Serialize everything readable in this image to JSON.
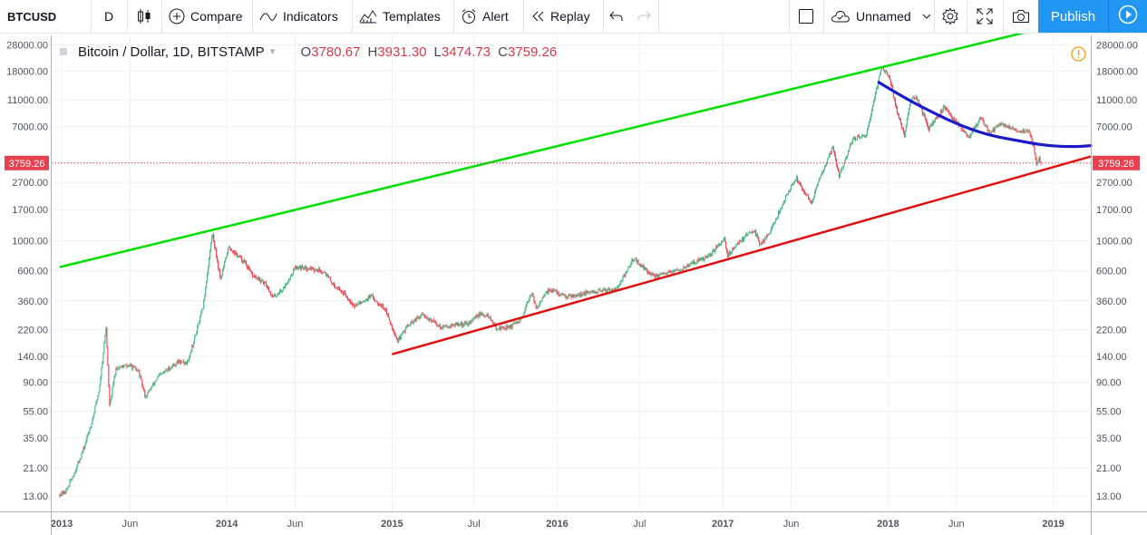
{
  "toolbar": {
    "symbol": "BTCUSD",
    "interval": "D",
    "compare": "Compare",
    "indicators": "Indicators",
    "templates": "Templates",
    "alert": "Alert",
    "replay": "Replay",
    "layout_name": "Unnamed",
    "publish": "Publish"
  },
  "legend": {
    "title": "Bitcoin / Dollar, 1D, BITSTAMP",
    "o_key": "O",
    "open": "3780.67",
    "h_key": "H",
    "high": "3931.30",
    "l_key": "L",
    "low": "3474.73",
    "c_key": "C",
    "close": "3759.26"
  },
  "colors": {
    "up_candle": "#53b987",
    "down_candle": "#eb4d5c",
    "upper_trendline": "#00e000",
    "lower_trendline": "#e01010",
    "curve": "#1a1ac8",
    "price_label": "#e8404f",
    "accent": "#2196f3",
    "warning": "#f39c12"
  },
  "chart_data": {
    "type": "candlestick",
    "title": "Bitcoin / Dollar, 1D, BITSTAMP",
    "y_scale": "log",
    "grid": true,
    "x_range": [
      "2012-12-10",
      "2019-03-25"
    ],
    "y_range": [
      10,
      33000
    ],
    "y_tick_labels": [
      "28000.00",
      "18000.00",
      "11000.00",
      "7000.00",
      "2700.00",
      "1700.00",
      "1000.00",
      "600.00",
      "360.00",
      "220.00",
      "140.00",
      "90.00",
      "55.00",
      "35.00",
      "21.00",
      "13.00"
    ],
    "x_tick_labels": [
      {
        "date": "2013-01-01",
        "label": "2013"
      },
      {
        "date": "2013-06-01",
        "label": "Jun"
      },
      {
        "date": "2014-01-01",
        "label": "2014"
      },
      {
        "date": "2014-06-01",
        "label": "Jun"
      },
      {
        "date": "2015-01-01",
        "label": "2015"
      },
      {
        "date": "2015-07-01",
        "label": "Jul"
      },
      {
        "date": "2016-01-01",
        "label": "2016"
      },
      {
        "date": "2016-07-01",
        "label": "Jul"
      },
      {
        "date": "2017-01-01",
        "label": "2017"
      },
      {
        "date": "2017-06-01",
        "label": "Jun"
      },
      {
        "date": "2018-01-01",
        "label": "2018"
      },
      {
        "date": "2018-06-01",
        "label": "Jun"
      },
      {
        "date": "2019-01-01",
        "label": "2019"
      }
    ],
    "last_price": {
      "value": 3759.26,
      "label": "3759.26"
    },
    "price_path": [
      [
        "2012-12-28",
        13.4
      ],
      [
        "2013-01-10",
        14
      ],
      [
        "2013-01-31",
        20
      ],
      [
        "2013-02-20",
        30
      ],
      [
        "2013-03-10",
        48
      ],
      [
        "2013-03-25",
        80
      ],
      [
        "2013-04-09",
        230
      ],
      [
        "2013-04-17",
        60
      ],
      [
        "2013-05-01",
        115
      ],
      [
        "2013-06-01",
        120
      ],
      [
        "2013-06-20",
        108
      ],
      [
        "2013-07-05",
        70
      ],
      [
        "2013-08-01",
        98
      ],
      [
        "2013-09-15",
        128
      ],
      [
        "2013-10-05",
        125
      ],
      [
        "2013-10-20",
        180
      ],
      [
        "2013-11-10",
        330
      ],
      [
        "2013-11-30",
        1150
      ],
      [
        "2013-12-18",
        520
      ],
      [
        "2014-01-05",
        900
      ],
      [
        "2014-02-10",
        690
      ],
      [
        "2014-02-25",
        560
      ],
      [
        "2014-03-30",
        470
      ],
      [
        "2014-04-12",
        380
      ],
      [
        "2014-05-05",
        440
      ],
      [
        "2014-06-02",
        640
      ],
      [
        "2014-07-01",
        630
      ],
      [
        "2014-08-05",
        590
      ],
      [
        "2014-08-20",
        490
      ],
      [
        "2014-09-20",
        400
      ],
      [
        "2014-10-10",
        330
      ],
      [
        "2014-11-15",
        390
      ],
      [
        "2014-12-15",
        320
      ],
      [
        "2015-01-14",
        180
      ],
      [
        "2015-02-01",
        230
      ],
      [
        "2015-03-10",
        285
      ],
      [
        "2015-04-20",
        230
      ],
      [
        "2015-05-20",
        240
      ],
      [
        "2015-06-20",
        245
      ],
      [
        "2015-07-10",
        285
      ],
      [
        "2015-08-01",
        280
      ],
      [
        "2015-08-20",
        225
      ],
      [
        "2015-09-20",
        232
      ],
      [
        "2015-10-15",
        260
      ],
      [
        "2015-11-04",
        420
      ],
      [
        "2015-11-15",
        320
      ],
      [
        "2015-12-15",
        440
      ],
      [
        "2016-01-15",
        390
      ],
      [
        "2016-02-15",
        400
      ],
      [
        "2016-03-15",
        415
      ],
      [
        "2016-04-15",
        430
      ],
      [
        "2016-05-15",
        455
      ],
      [
        "2016-06-18",
        750
      ],
      [
        "2016-07-01",
        670
      ],
      [
        "2016-08-02",
        540
      ],
      [
        "2016-09-01",
        575
      ],
      [
        "2016-10-01",
        615
      ],
      [
        "2016-11-01",
        700
      ],
      [
        "2016-12-01",
        760
      ],
      [
        "2017-01-04",
        1050
      ],
      [
        "2017-01-12",
        780
      ],
      [
        "2017-02-01",
        950
      ],
      [
        "2017-03-10",
        1220
      ],
      [
        "2017-03-25",
        930
      ],
      [
        "2017-04-20",
        1250
      ],
      [
        "2017-05-20",
        2100
      ],
      [
        "2017-06-12",
        2900
      ],
      [
        "2017-07-16",
        1900
      ],
      [
        "2017-08-01",
        2800
      ],
      [
        "2017-09-01",
        4900
      ],
      [
        "2017-09-15",
        3000
      ],
      [
        "2017-10-15",
        5700
      ],
      [
        "2017-11-12",
        5800
      ],
      [
        "2017-11-28",
        10000
      ],
      [
        "2017-12-17",
        19300
      ],
      [
        "2018-01-05",
        16000
      ],
      [
        "2018-01-17",
        10000
      ],
      [
        "2018-02-06",
        6000
      ],
      [
        "2018-02-20",
        11000
      ],
      [
        "2018-03-05",
        11500
      ],
      [
        "2018-04-01",
        6700
      ],
      [
        "2018-05-05",
        9800
      ],
      [
        "2018-06-01",
        7500
      ],
      [
        "2018-06-29",
        5900
      ],
      [
        "2018-07-25",
        8200
      ],
      [
        "2018-08-14",
        6200
      ],
      [
        "2018-09-05",
        7350
      ],
      [
        "2018-10-15",
        6550
      ],
      [
        "2018-11-10",
        6400
      ],
      [
        "2018-11-19",
        4800
      ],
      [
        "2018-11-25",
        3700
      ],
      [
        "2018-12-01",
        4100
      ],
      [
        "2018-12-05",
        3760
      ]
    ],
    "drawings": [
      {
        "type": "trendline",
        "name": "upper",
        "points": [
          [
            "2012-12-28",
            640
          ],
          [
            "2019-01-01",
            39000
          ]
        ]
      },
      {
        "type": "trendline",
        "name": "lower",
        "points": [
          [
            "2015-01-01",
            145
          ],
          [
            "2019-03-25",
            4200
          ]
        ]
      },
      {
        "type": "curve",
        "name": "curve",
        "points": [
          [
            "2017-12-12",
            14800
          ],
          [
            "2018-02-15",
            11000
          ],
          [
            "2018-04-15",
            8700
          ],
          [
            "2018-06-15",
            7000
          ],
          [
            "2018-08-15",
            6000
          ],
          [
            "2018-10-15",
            5500
          ],
          [
            "2018-12-15",
            5050
          ],
          [
            "2019-02-15",
            4950
          ],
          [
            "2019-03-25",
            5050
          ]
        ]
      }
    ]
  }
}
